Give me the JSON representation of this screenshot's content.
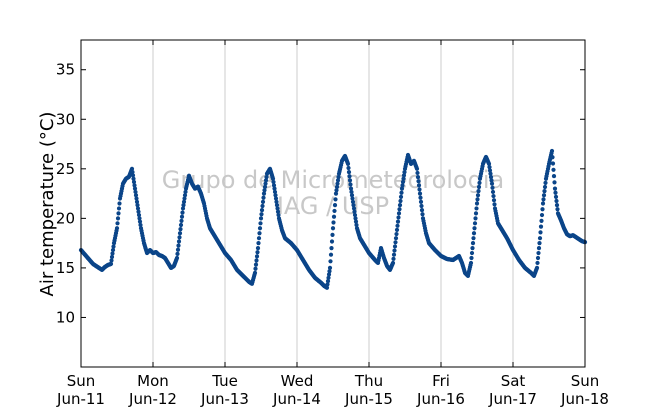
{
  "chart_data": {
    "type": "scatter",
    "title": "",
    "xlabel": "",
    "ylabel": "Air temperature (°C)",
    "ylim": [
      5,
      38
    ],
    "xlim": [
      "2017-06-11",
      "2017-06-18"
    ],
    "yticks": [
      10,
      15,
      20,
      25,
      30,
      35
    ],
    "xticks": [
      {
        "day": "Sun",
        "date": "Jun-11"
      },
      {
        "day": "Mon",
        "date": "Jun-12"
      },
      {
        "day": "Tue",
        "date": "Jun-13"
      },
      {
        "day": "Wed",
        "date": "Jun-14"
      },
      {
        "day": "Thu",
        "date": "Jun-15"
      },
      {
        "day": "Fri",
        "date": "Jun-16"
      },
      {
        "day": "Sat",
        "date": "Jun-17"
      },
      {
        "day": "Sun",
        "date": "Jun-18"
      }
    ],
    "grid": "vertical",
    "marker_color": "#0b4589",
    "watermark": [
      "Grupo de Micrometeorologia",
      "IAG / USP"
    ],
    "series": [
      {
        "points": [
          [
            "2017-06-11 00:00",
            16.8
          ],
          [
            "2017-06-11 02:00",
            16.1
          ],
          [
            "2017-06-11 04:00",
            15.4
          ],
          [
            "2017-06-11 06:00",
            15.0
          ],
          [
            "2017-06-11 07:00",
            14.8
          ],
          [
            "2017-06-11 08:00",
            15.1
          ],
          [
            "2017-06-11 09:00",
            15.3
          ],
          [
            "2017-06-11 10:00",
            15.4
          ],
          [
            "2017-06-11 11:00",
            17.5
          ],
          [
            "2017-06-11 12:00",
            19.0
          ],
          [
            "2017-06-11 13:00",
            22.0
          ],
          [
            "2017-06-11 14:00",
            23.5
          ],
          [
            "2017-06-11 15:00",
            24.0
          ],
          [
            "2017-06-11 16:00",
            24.2
          ],
          [
            "2017-06-11 17:00",
            25.0
          ],
          [
            "2017-06-11 18:00",
            23.0
          ],
          [
            "2017-06-11 19:00",
            21.0
          ],
          [
            "2017-06-11 20:00",
            19.0
          ],
          [
            "2017-06-11 21:00",
            17.5
          ],
          [
            "2017-06-11 22:00",
            16.5
          ],
          [
            "2017-06-11 23:00",
            16.8
          ],
          [
            "2017-06-12 00:00",
            16.5
          ],
          [
            "2017-06-12 01:00",
            16.6
          ],
          [
            "2017-06-12 02:00",
            16.3
          ],
          [
            "2017-06-12 03:00",
            16.2
          ],
          [
            "2017-06-12 04:00",
            16.0
          ],
          [
            "2017-06-12 05:00",
            15.5
          ],
          [
            "2017-06-12 06:00",
            15.0
          ],
          [
            "2017-06-12 07:00",
            15.2
          ],
          [
            "2017-06-12 08:00",
            16.0
          ],
          [
            "2017-06-12 09:00",
            18.5
          ],
          [
            "2017-06-12 10:00",
            21.0
          ],
          [
            "2017-06-12 11:00",
            23.0
          ],
          [
            "2017-06-12 12:00",
            24.3
          ],
          [
            "2017-06-12 13:00",
            23.5
          ],
          [
            "2017-06-12 14:00",
            23.0
          ],
          [
            "2017-06-12 15:00",
            23.2
          ],
          [
            "2017-06-12 16:00",
            22.5
          ],
          [
            "2017-06-12 17:00",
            21.5
          ],
          [
            "2017-06-12 18:00",
            20.0
          ],
          [
            "2017-06-12 19:00",
            19.0
          ],
          [
            "2017-06-12 20:00",
            18.5
          ],
          [
            "2017-06-12 21:00",
            18.0
          ],
          [
            "2017-06-12 22:00",
            17.5
          ],
          [
            "2017-06-12 23:00",
            17.0
          ],
          [
            "2017-06-13 00:00",
            16.5
          ],
          [
            "2017-06-13 02:00",
            15.8
          ],
          [
            "2017-06-13 04:00",
            14.8
          ],
          [
            "2017-06-13 06:00",
            14.2
          ],
          [
            "2017-06-13 08:00",
            13.6
          ],
          [
            "2017-06-13 09:00",
            13.4
          ],
          [
            "2017-06-13 10:00",
            14.5
          ],
          [
            "2017-06-13 11:00",
            17.0
          ],
          [
            "2017-06-13 12:00",
            20.0
          ],
          [
            "2017-06-13 13:00",
            22.5
          ],
          [
            "2017-06-13 14:00",
            24.5
          ],
          [
            "2017-06-13 15:00",
            25.0
          ],
          [
            "2017-06-13 16:00",
            24.0
          ],
          [
            "2017-06-13 17:00",
            22.0
          ],
          [
            "2017-06-13 18:00",
            20.0
          ],
          [
            "2017-06-13 19:00",
            18.8
          ],
          [
            "2017-06-13 20:00",
            18.0
          ],
          [
            "2017-06-13 22:00",
            17.5
          ],
          [
            "2017-06-14 00:00",
            16.8
          ],
          [
            "2017-06-14 02:00",
            15.8
          ],
          [
            "2017-06-14 04:00",
            14.8
          ],
          [
            "2017-06-14 06:00",
            14.0
          ],
          [
            "2017-06-14 08:00",
            13.5
          ],
          [
            "2017-06-14 09:00",
            13.2
          ],
          [
            "2017-06-14 10:00",
            13.0
          ],
          [
            "2017-06-14 11:00",
            15.0
          ],
          [
            "2017-06-14 12:00",
            19.0
          ],
          [
            "2017-06-14 13:00",
            22.5
          ],
          [
            "2017-06-14 14:00",
            24.5
          ],
          [
            "2017-06-14 15:00",
            25.8
          ],
          [
            "2017-06-14 16:00",
            26.3
          ],
          [
            "2017-06-14 17:00",
            25.5
          ],
          [
            "2017-06-14 18:00",
            23.0
          ],
          [
            "2017-06-14 19:00",
            21.0
          ],
          [
            "2017-06-14 20:00",
            19.0
          ],
          [
            "2017-06-14 21:00",
            18.0
          ],
          [
            "2017-06-14 22:00",
            17.5
          ],
          [
            "2017-06-15 00:00",
            16.5
          ],
          [
            "2017-06-15 02:00",
            15.8
          ],
          [
            "2017-06-15 03:00",
            15.5
          ],
          [
            "2017-06-15 04:00",
            17.0
          ],
          [
            "2017-06-15 05:00",
            16.0
          ],
          [
            "2017-06-15 06:00",
            15.2
          ],
          [
            "2017-06-15 07:00",
            14.8
          ],
          [
            "2017-06-15 08:00",
            15.5
          ],
          [
            "2017-06-15 09:00",
            18.0
          ],
          [
            "2017-06-15 10:00",
            20.5
          ],
          [
            "2017-06-15 11:00",
            23.0
          ],
          [
            "2017-06-15 12:00",
            25.0
          ],
          [
            "2017-06-15 13:00",
            26.4
          ],
          [
            "2017-06-15 14:00",
            25.5
          ],
          [
            "2017-06-15 15:00",
            25.8
          ],
          [
            "2017-06-15 16:00",
            25.0
          ],
          [
            "2017-06-15 17:00",
            22.5
          ],
          [
            "2017-06-15 18:00",
            20.0
          ],
          [
            "2017-06-15 19:00",
            18.5
          ],
          [
            "2017-06-15 20:00",
            17.5
          ],
          [
            "2017-06-15 22:00",
            16.8
          ],
          [
            "2017-06-16 00:00",
            16.2
          ],
          [
            "2017-06-16 02:00",
            15.9
          ],
          [
            "2017-06-16 04:00",
            15.8
          ],
          [
            "2017-06-16 06:00",
            16.2
          ],
          [
            "2017-06-16 07:00",
            15.5
          ],
          [
            "2017-06-16 08:00",
            14.5
          ],
          [
            "2017-06-16 09:00",
            14.2
          ],
          [
            "2017-06-16 10:00",
            15.5
          ],
          [
            "2017-06-16 11:00",
            18.5
          ],
          [
            "2017-06-16 12:00",
            21.5
          ],
          [
            "2017-06-16 13:00",
            24.0
          ],
          [
            "2017-06-16 14:00",
            25.5
          ],
          [
            "2017-06-16 15:00",
            26.2
          ],
          [
            "2017-06-16 16:00",
            25.5
          ],
          [
            "2017-06-16 17:00",
            23.5
          ],
          [
            "2017-06-16 18:00",
            21.0
          ],
          [
            "2017-06-16 19:00",
            19.5
          ],
          [
            "2017-06-16 20:00",
            19.0
          ],
          [
            "2017-06-16 22:00",
            18.0
          ],
          [
            "2017-06-17 00:00",
            16.8
          ],
          [
            "2017-06-17 02:00",
            15.8
          ],
          [
            "2017-06-17 04:00",
            15.0
          ],
          [
            "2017-06-17 06:00",
            14.5
          ],
          [
            "2017-06-17 07:00",
            14.2
          ],
          [
            "2017-06-17 08:00",
            15.0
          ],
          [
            "2017-06-17 09:00",
            18.0
          ],
          [
            "2017-06-17 10:00",
            21.5
          ],
          [
            "2017-06-17 11:00",
            24.0
          ],
          [
            "2017-06-17 12:00",
            25.5
          ],
          [
            "2017-06-17 13:00",
            26.8
          ],
          [
            "2017-06-17 14:00",
            23.0
          ],
          [
            "2017-06-17 15:00",
            20.5
          ],
          [
            "2017-06-17 16:00",
            19.8
          ],
          [
            "2017-06-17 17:00",
            19.0
          ],
          [
            "2017-06-17 18:00",
            18.4
          ],
          [
            "2017-06-17 19:00",
            18.2
          ],
          [
            "2017-06-17 20:00",
            18.3
          ],
          [
            "2017-06-17 21:00",
            18.1
          ],
          [
            "2017-06-17 22:00",
            17.9
          ],
          [
            "2017-06-17 23:00",
            17.7
          ],
          [
            "2017-06-18 00:00",
            17.6
          ]
        ]
      }
    ]
  }
}
